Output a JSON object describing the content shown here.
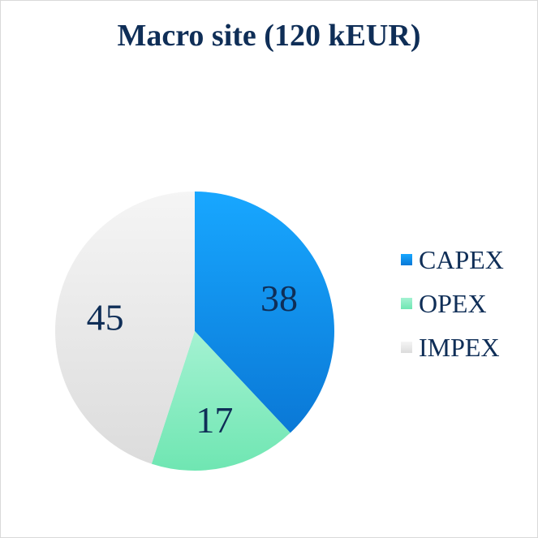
{
  "chart_data": {
    "type": "pie",
    "title": "Macro site (120 kEUR)",
    "categories": [
      "CAPEX",
      "OPEX",
      "IMPEX"
    ],
    "values": [
      38,
      17,
      45
    ],
    "colors": [
      "#1a8fea",
      "#7fe8b8",
      "#e8e8e8"
    ],
    "legend": {
      "position": "right",
      "entries": [
        "CAPEX",
        "OPEX",
        "IMPEX"
      ]
    }
  }
}
